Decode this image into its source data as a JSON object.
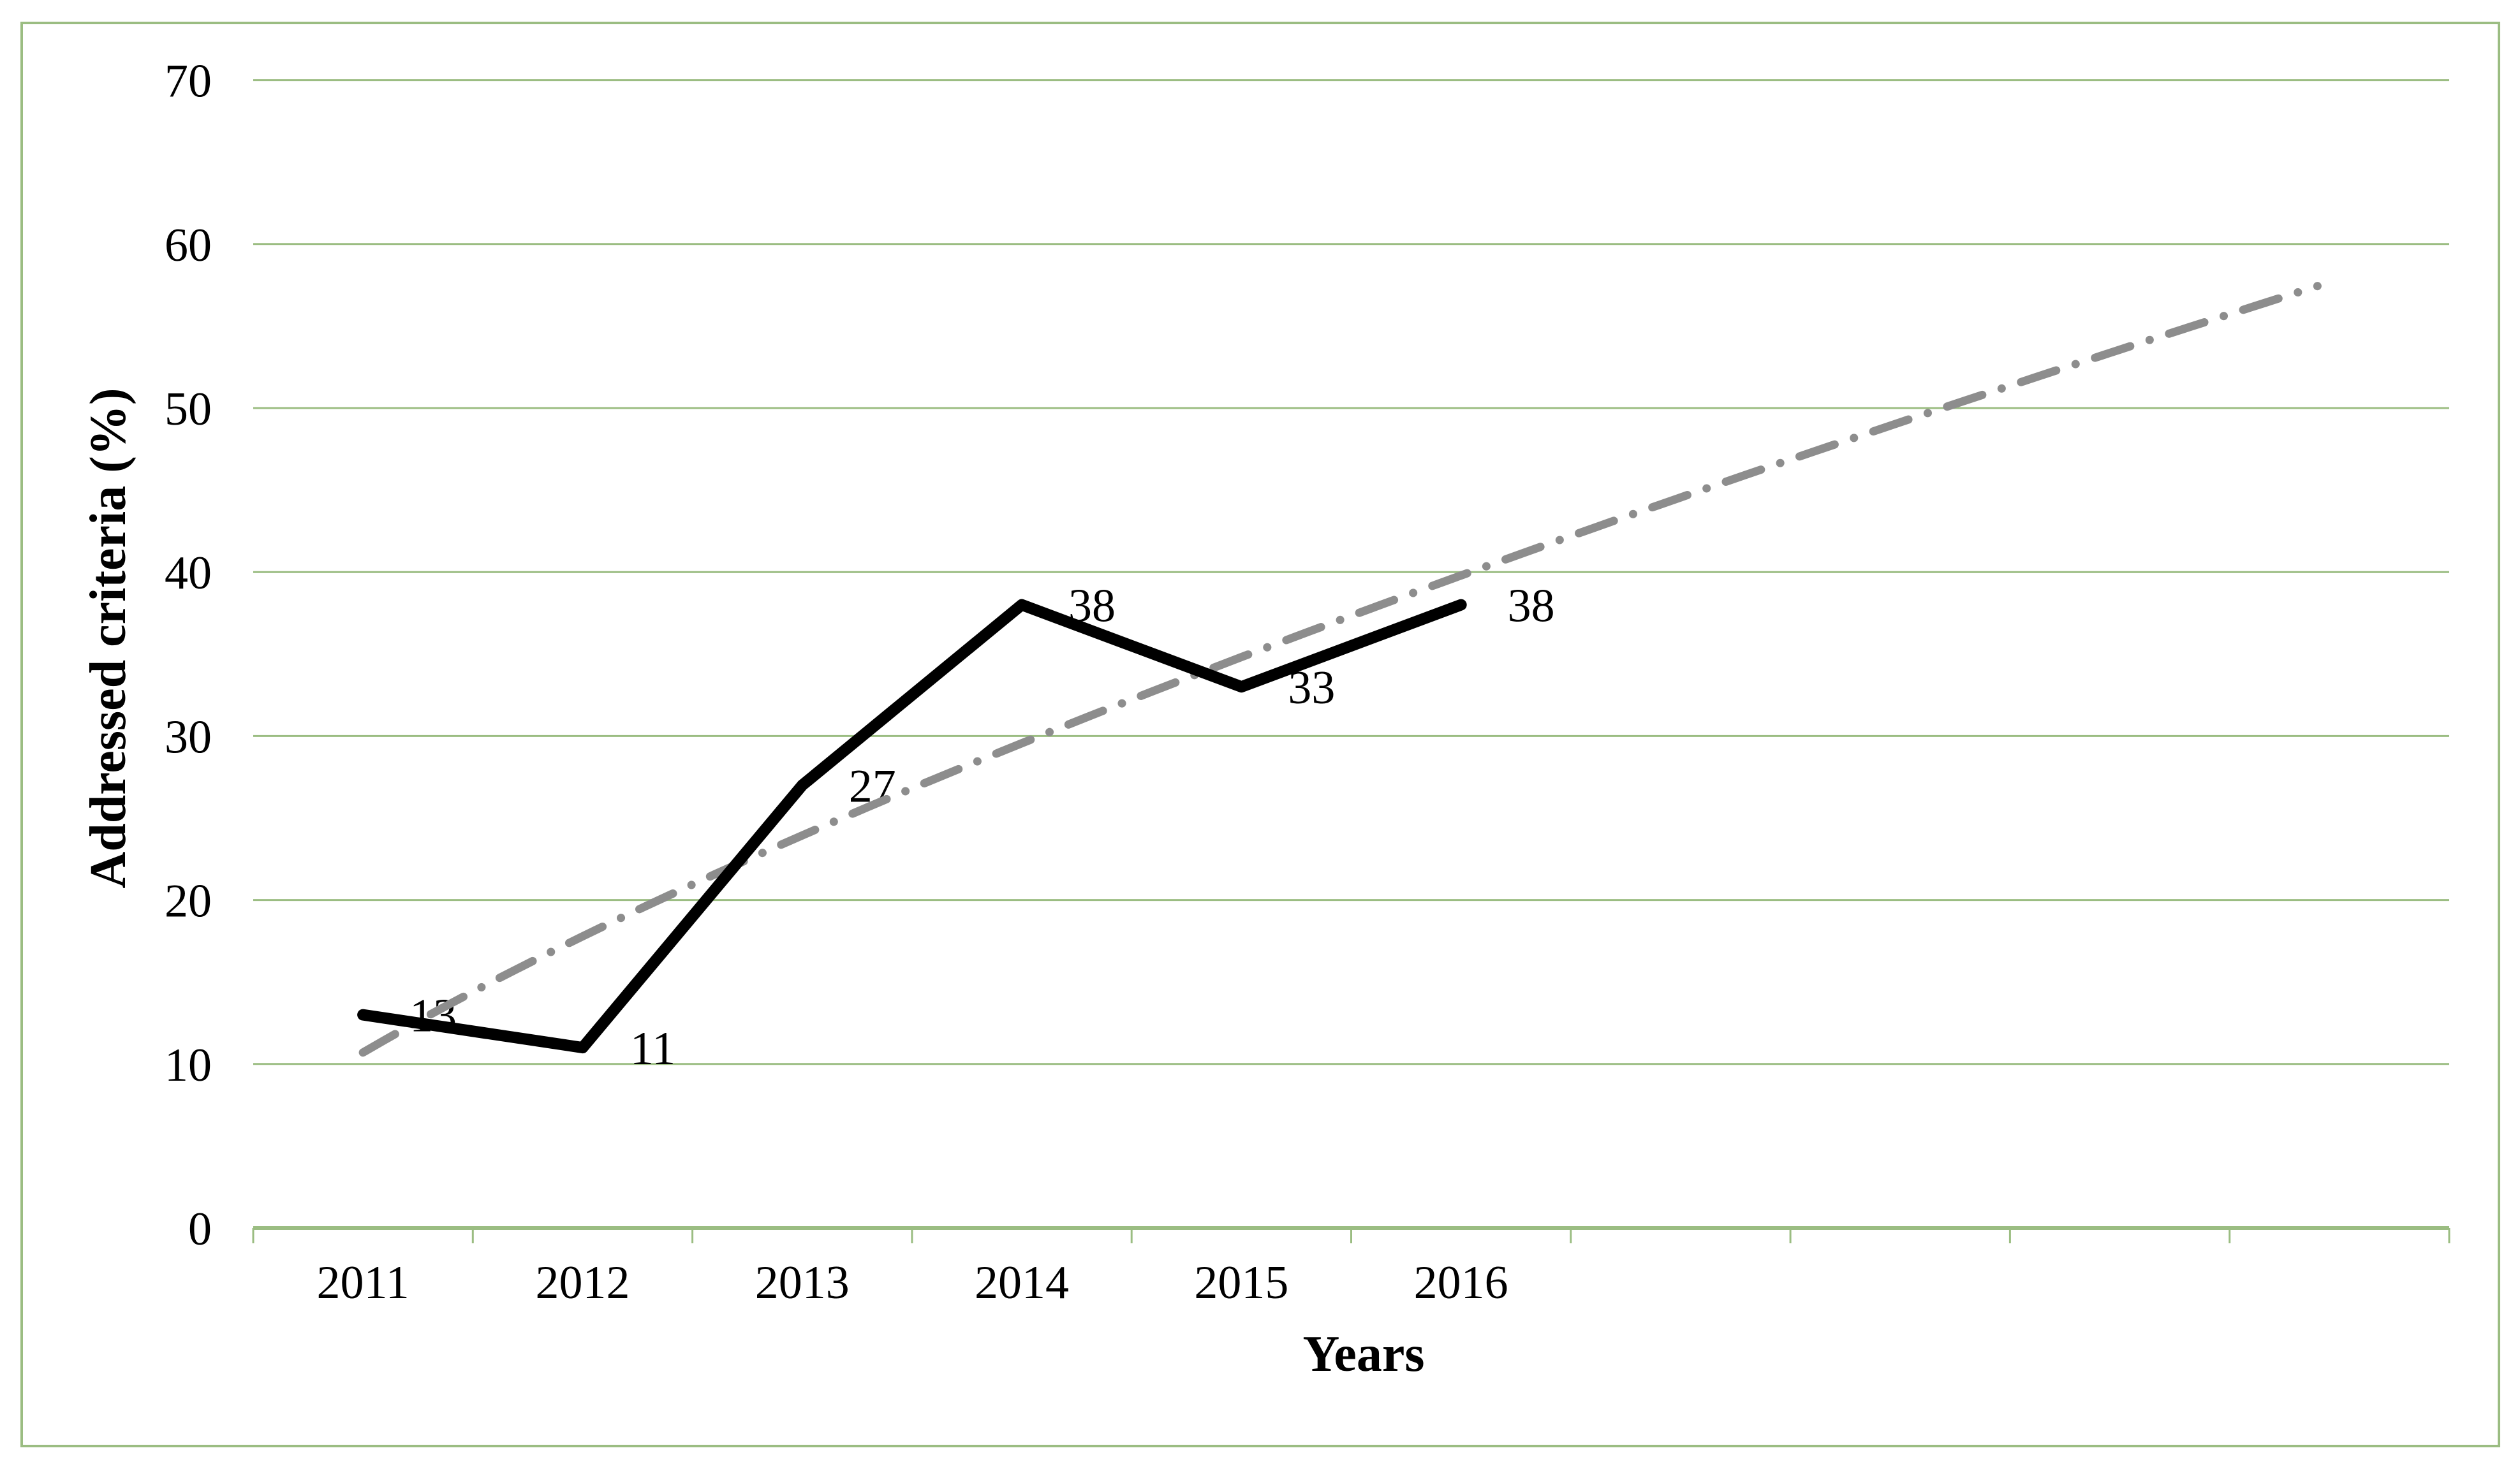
{
  "chart_data": {
    "type": "line",
    "title": "",
    "xlabel": "Years",
    "ylabel": "Addressed criteria (%)",
    "categories": [
      "2011",
      "2012",
      "2013",
      "2014",
      "2015",
      "2016"
    ],
    "x_axis_total_slots": 10,
    "y_ticks": [
      0,
      10,
      20,
      30,
      40,
      50,
      60,
      70
    ],
    "ylim": [
      0,
      70
    ],
    "grid": "horizontal-only",
    "legend": "none",
    "series": [
      {
        "name": "Addressed criteria",
        "type": "line",
        "color": "#000000",
        "values": [
          13,
          11,
          27,
          38,
          33,
          38
        ],
        "data_labels": [
          "13",
          "11",
          "27",
          "38",
          "33",
          "38"
        ]
      }
    ],
    "trendline": {
      "name": "trend-forecast",
      "style": "dash-dot",
      "color": "#8d8d8d",
      "model": "power",
      "a": 10.7,
      "b": 0.733,
      "x_start_slot": 1,
      "x_end_slot": 9.9,
      "value_at_start": 10.7,
      "value_at_end": 57.5
    }
  },
  "colors": {
    "background": "#ffffff",
    "border": "#9bbd82",
    "grid": "#9bbd82",
    "axis": "#9bbd82",
    "series": "#000000",
    "trend": "#8d8d8d",
    "text": "#000000"
  }
}
